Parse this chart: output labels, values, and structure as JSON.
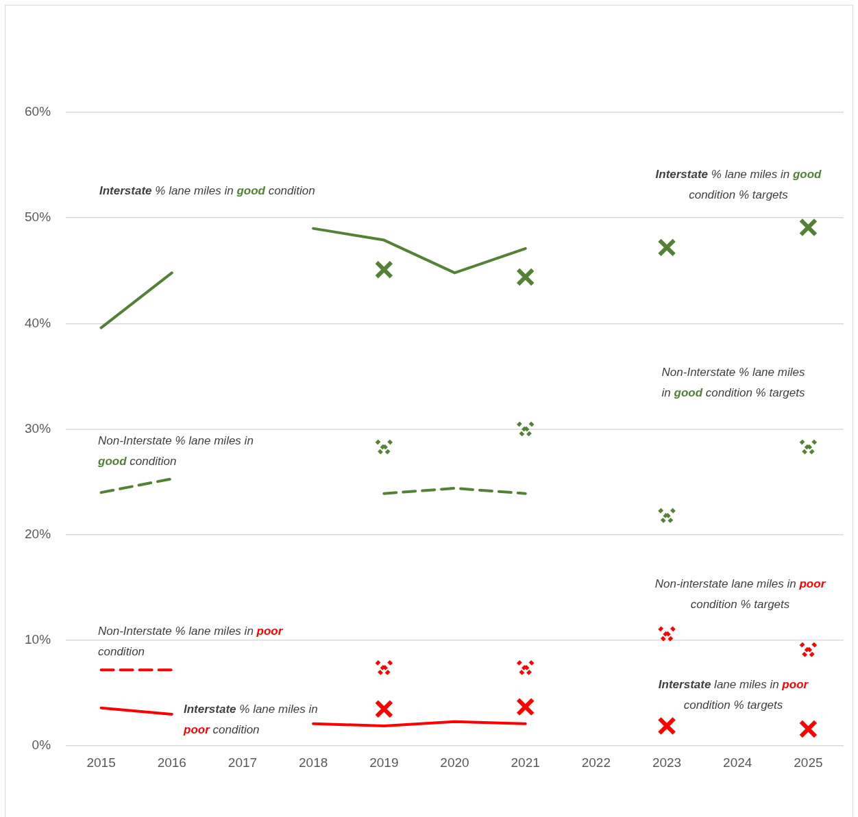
{
  "chart_data": {
    "type": "line",
    "categories": [
      "2015",
      "2016",
      "2017",
      "2018",
      "2019",
      "2020",
      "2021",
      "2022",
      "2023",
      "2024",
      "2025"
    ],
    "ylim": [
      0,
      60
    ],
    "yticks": [
      {
        "value": 0,
        "label": "0%"
      },
      {
        "value": 10,
        "label": "10%"
      },
      {
        "value": 20,
        "label": "20%"
      },
      {
        "value": 30,
        "label": "30%"
      },
      {
        "value": 40,
        "label": "40%"
      },
      {
        "value": 50,
        "label": "50%"
      },
      {
        "value": 60,
        "label": "60%"
      }
    ],
    "grid": "y",
    "legend": false,
    "series": [
      {
        "name": "Interstate % lane miles in good condition",
        "type": "line",
        "color": "#538135",
        "marker": "none",
        "line_style": "solid",
        "values": [
          39.6,
          44.8,
          null,
          49.0,
          47.9,
          44.8,
          47.1,
          null,
          null,
          null,
          null
        ]
      },
      {
        "name": "Interstate % lane miles in good condition % targets",
        "type": "scatter",
        "color": "#538135",
        "marker": "cross",
        "line_style": "solid",
        "values": [
          null,
          null,
          null,
          null,
          45.1,
          null,
          44.4,
          null,
          47.2,
          null,
          49.1
        ]
      },
      {
        "name": "Non-Interstate % lane miles in good condition",
        "type": "line",
        "color": "#538135",
        "marker": "none",
        "line_style": "dashed",
        "values": [
          24.0,
          25.3,
          null,
          null,
          23.9,
          24.4,
          23.9,
          null,
          null,
          null,
          null
        ]
      },
      {
        "name": "Non-Interstate % lane miles in good condition % targets",
        "type": "scatter",
        "color": "#538135",
        "marker": "cross",
        "line_style": "dotted",
        "values": [
          null,
          null,
          null,
          null,
          28.2,
          null,
          29.9,
          null,
          21.7,
          null,
          28.2
        ]
      },
      {
        "name": "Non-Interstate % lane miles in poor condition",
        "type": "line",
        "color": "#ff0000",
        "marker": "none",
        "line_style": "dashed",
        "values": [
          7.2,
          7.2,
          null,
          null,
          null,
          null,
          null,
          null,
          null,
          null,
          null
        ]
      },
      {
        "name": "Non-interstate lane miles in poor condition % targets",
        "type": "scatter",
        "color": "#ff0000",
        "marker": "cross",
        "line_style": "dotted",
        "values": [
          null,
          null,
          null,
          null,
          7.3,
          null,
          7.3,
          null,
          10.5,
          null,
          9.0
        ]
      },
      {
        "name": "Interstate % lane miles in poor condition",
        "type": "line",
        "color": "#ff0000",
        "marker": "none",
        "line_style": "solid",
        "values": [
          3.6,
          3.0,
          null,
          2.1,
          1.9,
          2.3,
          2.1,
          null,
          null,
          null,
          null
        ]
      },
      {
        "name": "Interstate lane miles in poor condition % targets",
        "type": "scatter",
        "color": "#ff0000",
        "marker": "cross",
        "line_style": "solid",
        "values": [
          null,
          null,
          null,
          null,
          3.5,
          null,
          3.7,
          null,
          1.9,
          null,
          1.6
        ]
      }
    ]
  }
}
